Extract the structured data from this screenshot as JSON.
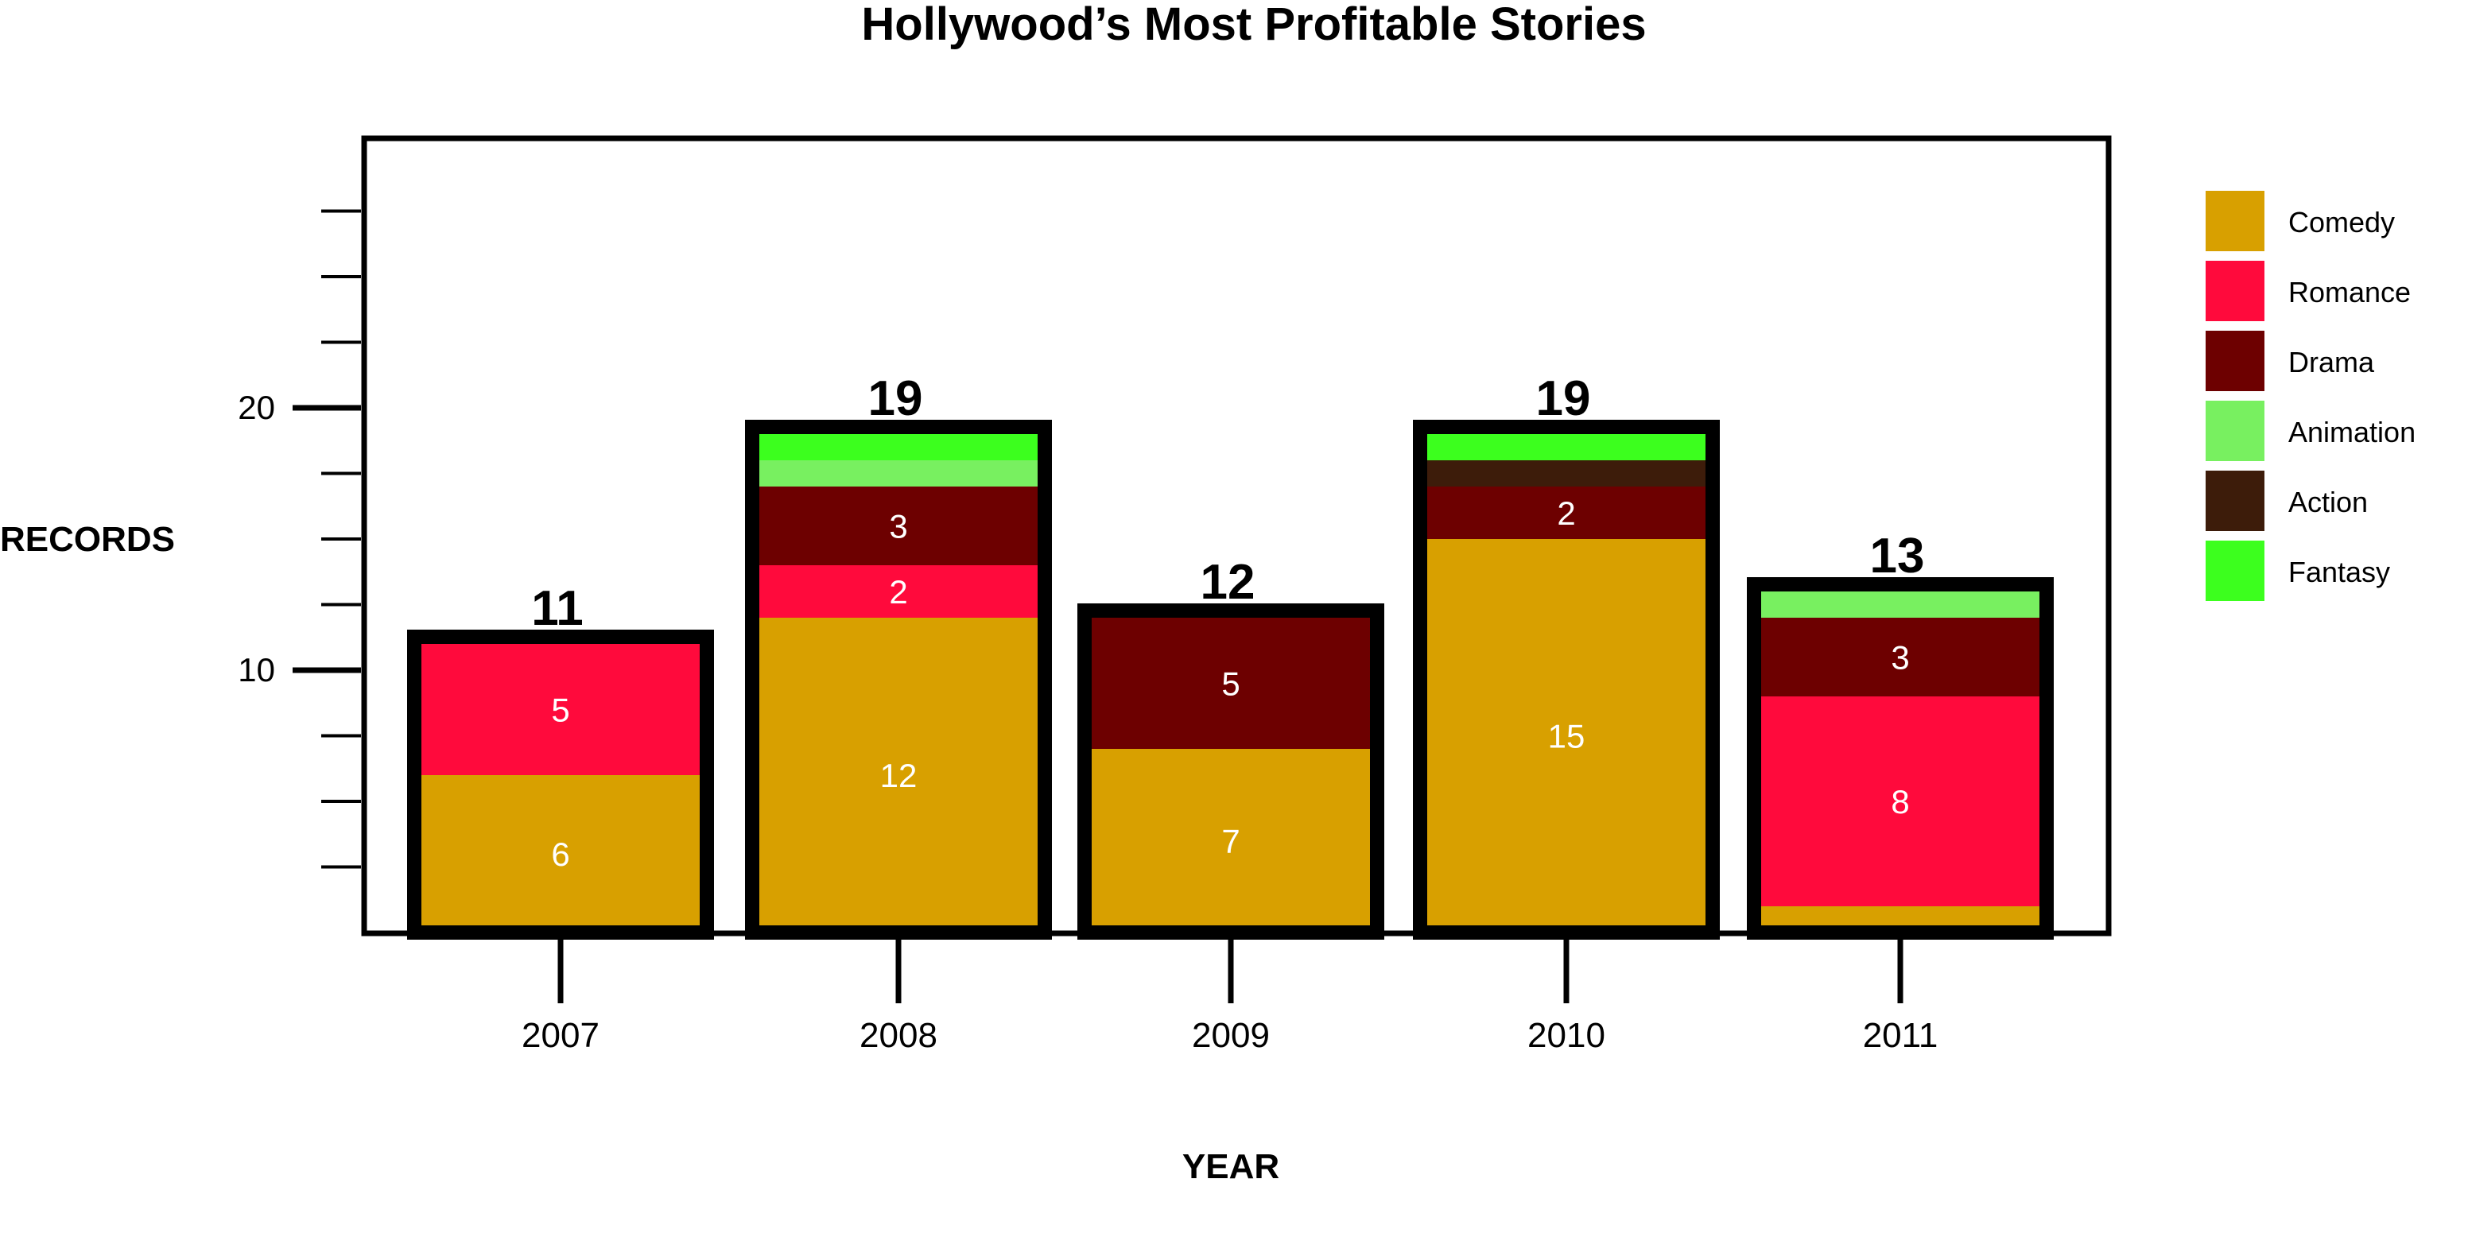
{
  "chart_data": {
    "type": "bar",
    "stacked": true,
    "title": "Hollywood’s Most Profitable Stories",
    "xlabel": "YEAR",
    "ylabel": "RECORDS",
    "categories": [
      "2007",
      "2008",
      "2009",
      "2010",
      "2011"
    ],
    "totals": [
      11,
      19,
      12,
      19,
      13
    ],
    "ylim": [
      0,
      27.5
    ],
    "y_tick_labels": [
      {
        "value": 10,
        "label": "10"
      },
      {
        "value": 20,
        "label": "20"
      }
    ],
    "y_minor_step": 2.5,
    "grid": false,
    "legend_position": "right",
    "series": [
      {
        "name": "Comedy",
        "color": "#D8A000",
        "values": [
          6,
          12,
          7,
          15,
          1
        ]
      },
      {
        "name": "Romance",
        "color": "#FF0A3C",
        "values": [
          5,
          2,
          0,
          0,
          8
        ]
      },
      {
        "name": "Drama",
        "color": "#6D0000",
        "values": [
          0,
          3,
          5,
          2,
          3
        ]
      },
      {
        "name": "Animation",
        "color": "#78F060",
        "values": [
          0,
          1,
          0,
          0,
          1
        ]
      },
      {
        "name": "Action",
        "color": "#3D1C0A",
        "values": [
          0,
          0,
          0,
          1,
          0
        ]
      },
      {
        "name": "Fantasy",
        "color": "#3CFF1E",
        "values": [
          0,
          1,
          0,
          1,
          0
        ]
      }
    ],
    "segment_labels": [
      [
        "6",
        "5",
        "",
        "",
        "",
        ""
      ],
      [
        "12",
        "2",
        "3",
        "",
        "",
        ""
      ],
      [
        "7",
        "",
        "5",
        "",
        "",
        ""
      ],
      [
        "15",
        "",
        "2",
        "",
        "",
        ""
      ],
      [
        "",
        "8",
        "3",
        "",
        "",
        ""
      ]
    ]
  }
}
